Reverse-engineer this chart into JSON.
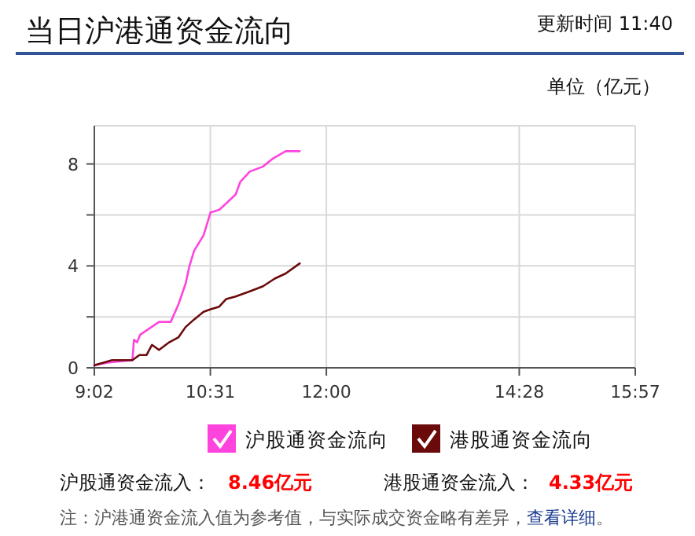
{
  "chart_data": {
    "type": "line",
    "title": "当日沪港通资金流向",
    "annotations": [
      "更新时间 11:40",
      "单位（亿元）",
      "沪股通资金流入：",
      "8.46亿元",
      "港股通资金流入：",
      "4.33亿元",
      "注：沪港通资金流入值为参考值，与实际成交资金略有差异，",
      "查看详细",
      "。"
    ],
    "xlim": [
      9.0333,
      15.95
    ],
    "xticks": [
      {
        "value": 9.0333,
        "label": "9:02"
      },
      {
        "value": 10.5167,
        "label": "10:31"
      },
      {
        "value": 12,
        "label": "12:00"
      },
      {
        "value": 14.4667,
        "label": "14:28"
      },
      {
        "value": 15.95,
        "label": "15:57"
      }
    ],
    "ylim": [
      0,
      9.5
    ],
    "yticks": [
      0,
      {
        "value": 2,
        "label": null
      },
      4,
      {
        "value": 6,
        "label": null
      },
      8
    ],
    "grid": true,
    "legend": "bottom",
    "series": [
      {
        "name": "沪股通资金流向",
        "color": "#ff44dd",
        "x": [
          9.0333,
          9.2,
          9.52,
          9.54,
          9.58,
          9.62,
          9.86,
          10.01,
          10.11,
          10.2,
          10.25,
          10.31,
          10.43,
          10.52,
          10.63,
          10.84,
          10.9,
          11.02,
          11.19,
          11.31,
          11.48,
          11.66
        ],
        "values": [
          0.1,
          0.2,
          0.3,
          1.1,
          1.0,
          1.3,
          1.8,
          1.8,
          2.5,
          3.3,
          4.0,
          4.6,
          5.2,
          6.1,
          6.2,
          6.8,
          7.3,
          7.7,
          7.9,
          8.2,
          8.5,
          8.5
        ]
      },
      {
        "name": "港股通资金流向",
        "color": "#6b0a0a",
        "x": [
          9.0333,
          9.26,
          9.52,
          9.61,
          9.7,
          9.77,
          9.86,
          9.99,
          10.11,
          10.2,
          10.31,
          10.43,
          10.52,
          10.63,
          10.72,
          10.84,
          11.02,
          11.19,
          11.34,
          11.48,
          11.66
        ],
        "values": [
          0.1,
          0.3,
          0.3,
          0.5,
          0.5,
          0.9,
          0.7,
          1.0,
          1.2,
          1.6,
          1.9,
          2.2,
          2.3,
          2.4,
          2.7,
          2.8,
          3.0,
          3.2,
          3.5,
          3.7,
          4.1
        ]
      }
    ]
  }
}
